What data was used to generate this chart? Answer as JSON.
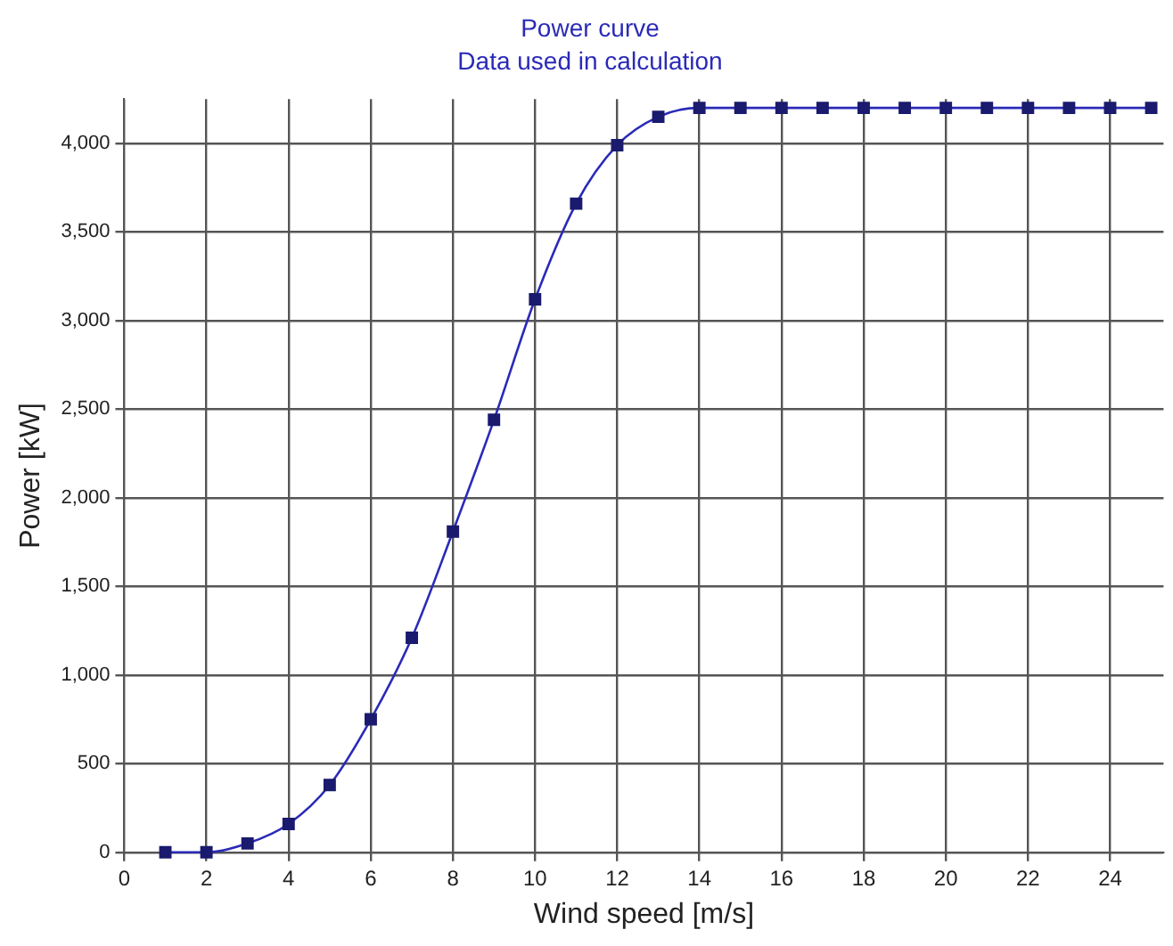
{
  "chart_data": {
    "type": "line",
    "title": "Power curve",
    "subtitle": "Data used in calculation",
    "xlabel": "Wind speed [m/s]",
    "ylabel": "Power [kW]",
    "x": [
      1,
      2,
      3,
      4,
      5,
      6,
      7,
      8,
      9,
      10,
      11,
      12,
      13,
      14,
      15,
      16,
      17,
      18,
      19,
      20,
      21,
      22,
      23,
      24,
      25
    ],
    "series": [
      {
        "color": "#2a2ab8",
        "values": [
          0,
          0,
          50,
          160,
          380,
          750,
          1210,
          1810,
          2440,
          3120,
          3660,
          3990,
          4150,
          4200,
          4200,
          4200,
          4200,
          4200,
          4200,
          4200,
          4200,
          4200,
          4200,
          4200,
          4200
        ]
      }
    ],
    "xlim": [
      0,
      25.3
    ],
    "xticks": [
      0,
      2,
      4,
      6,
      8,
      10,
      12,
      14,
      16,
      18,
      20,
      22,
      24
    ],
    "ylim": [
      0,
      4250
    ],
    "yticks": [
      0,
      {
        "value": 500,
        "label": "500"
      },
      {
        "value": 1000,
        "label": "1,000"
      },
      {
        "value": 1500,
        "label": "1,500"
      },
      {
        "value": 2000,
        "label": "2,000"
      },
      {
        "value": 2500,
        "label": "2,500"
      },
      {
        "value": 3000,
        "label": "3,000"
      },
      {
        "value": 3500,
        "label": "3,500"
      },
      {
        "value": 4000,
        "label": "4,000"
      }
    ],
    "grid": true,
    "legend": false,
    "marker": "square",
    "line_style": "solid"
  }
}
